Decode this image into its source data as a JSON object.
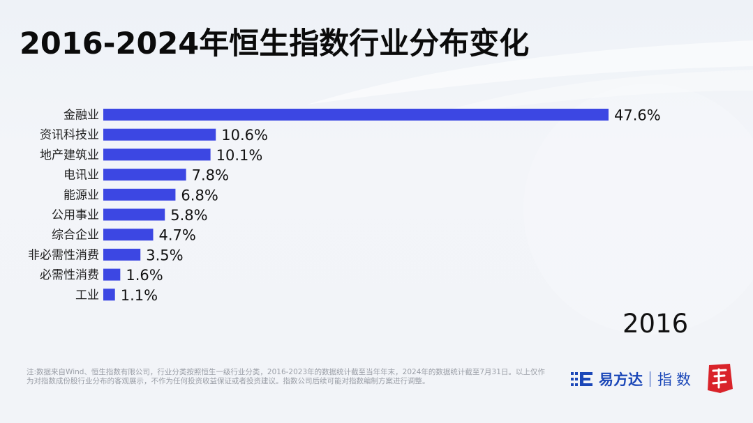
{
  "title": "2016-2024年恒生指数行业分布变化",
  "year_label": "2016",
  "footnote": "注:数据来自Wind、恒生指数有限公司，行业分类按照恒生一级行业分类，2016-2023年的数据统计截至当年年末，2024年的数据统计截至7月31日。以上仅作为对指数成份股行业分布的客观展示，不作为任何投资收益保证或者投资建议。指数公司后续可能对指数编制方案进行调整。",
  "brand": {
    "name": "易方达",
    "sub": "指数"
  },
  "colors": {
    "bar": "#3c47e3",
    "title": "#0b0b0b",
    "brand": "#1b47b8",
    "seal": "#d9232a"
  },
  "chart_data": {
    "type": "bar",
    "orientation": "horizontal",
    "categories": [
      "金融业",
      "资讯科技业",
      "地产建筑业",
      "电讯业",
      "能源业",
      "公用事业",
      "综合企业",
      "非必需性消费",
      "必需性消费",
      "工业"
    ],
    "values": [
      47.6,
      10.6,
      10.1,
      7.8,
      6.8,
      5.8,
      4.7,
      3.5,
      1.6,
      1.1
    ],
    "value_labels": [
      "47.6%",
      "10.6%",
      "10.1%",
      "7.8%",
      "6.8%",
      "5.8%",
      "4.7%",
      "3.5%",
      "1.6%",
      "1.1%"
    ],
    "unit": "%",
    "title": "2016-2024年恒生指数行业分布变化",
    "xlabel": "",
    "ylabel": "",
    "xlim": [
      0,
      47.6
    ],
    "grid": false,
    "legend": "none"
  }
}
